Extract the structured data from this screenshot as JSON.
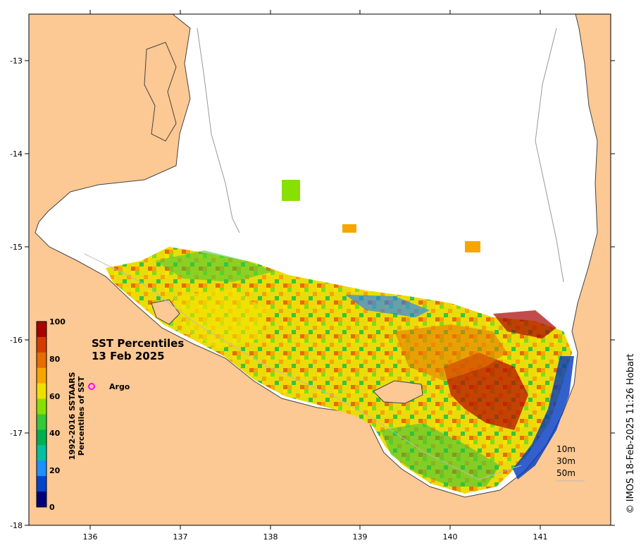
{
  "map": {
    "title_line1": "SST Percentiles",
    "title_line2": "13 Feb 2025",
    "credit": "© IMOS 18-Feb-2025 11:26 Hobart",
    "argo_label": "Argo",
    "argo_color": "#ff00ff",
    "land_color": "#fcc893",
    "ocean_color": "#ffffff",
    "latitude_ticks": [
      "-13",
      "-14",
      "-15",
      "-16",
      "-17",
      "-18"
    ],
    "longitude_ticks": [
      "136",
      "137",
      "138",
      "139",
      "140",
      "141"
    ],
    "depth_labels": [
      "10m",
      "30m",
      "50m"
    ]
  },
  "colorbar": {
    "label_line1": "1992-2016 SSTAARS",
    "label_line2": "Percentiles of SST",
    "tick_labels": [
      "100",
      "80",
      "60",
      "40",
      "20",
      "0"
    ],
    "bands": [
      {
        "range": "95-100",
        "color": "#a80000"
      },
      {
        "range": "90-95",
        "color": "#d43b00"
      },
      {
        "range": "80-90",
        "color": "#e86c00"
      },
      {
        "range": "70-80",
        "color": "#f7a600"
      },
      {
        "range": "60-70",
        "color": "#f0e000"
      },
      {
        "range": "50-60",
        "color": "#88e000"
      },
      {
        "range": "40-50",
        "color": "#36c836"
      },
      {
        "range": "30-40",
        "color": "#00b050"
      },
      {
        "range": "20-30",
        "color": "#00c0a0"
      },
      {
        "range": "10-20",
        "color": "#1e90ff"
      },
      {
        "range": "5-10",
        "color": "#0044cc"
      },
      {
        "range": "0-5",
        "color": "#00007a"
      }
    ]
  }
}
